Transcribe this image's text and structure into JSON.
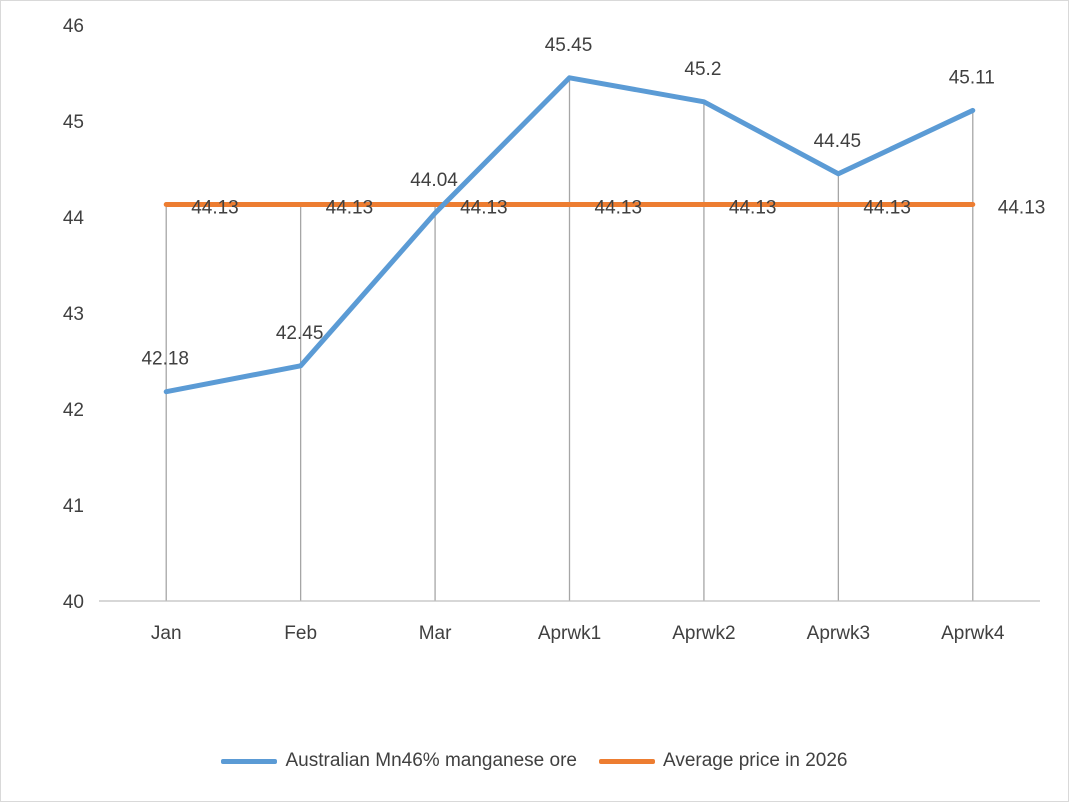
{
  "chart_data": {
    "type": "line",
    "categories": [
      "Jan",
      "Feb",
      "Mar",
      "Aprwk1",
      "Aprwk2",
      "Aprwk3",
      "Aprwk4"
    ],
    "ylim": [
      40,
      46
    ],
    "yticks": [
      "40",
      "41",
      "42",
      "43",
      "44",
      "45",
      "46"
    ],
    "grid": false,
    "drop_lines": true,
    "legend_position": "bottom",
    "series": [
      {
        "name": "Australian Mn46% manganese ore",
        "color": "#5b9bd5",
        "values": [
          42.18,
          42.45,
          44.04,
          45.45,
          45.2,
          44.45,
          45.11
        ],
        "labels": [
          "42.18",
          "42.45",
          "44.04",
          "45.45",
          "45.2",
          "44.45",
          "45.11"
        ]
      },
      {
        "name": "Average price in 2026",
        "color": "#ed7d31",
        "values": [
          44.13,
          44.13,
          44.13,
          44.13,
          44.13,
          44.13,
          44.13
        ],
        "labels": [
          "44.13",
          "44.13",
          "44.13",
          "44.13",
          "44.13",
          "44.13",
          "44.13"
        ]
      }
    ]
  }
}
